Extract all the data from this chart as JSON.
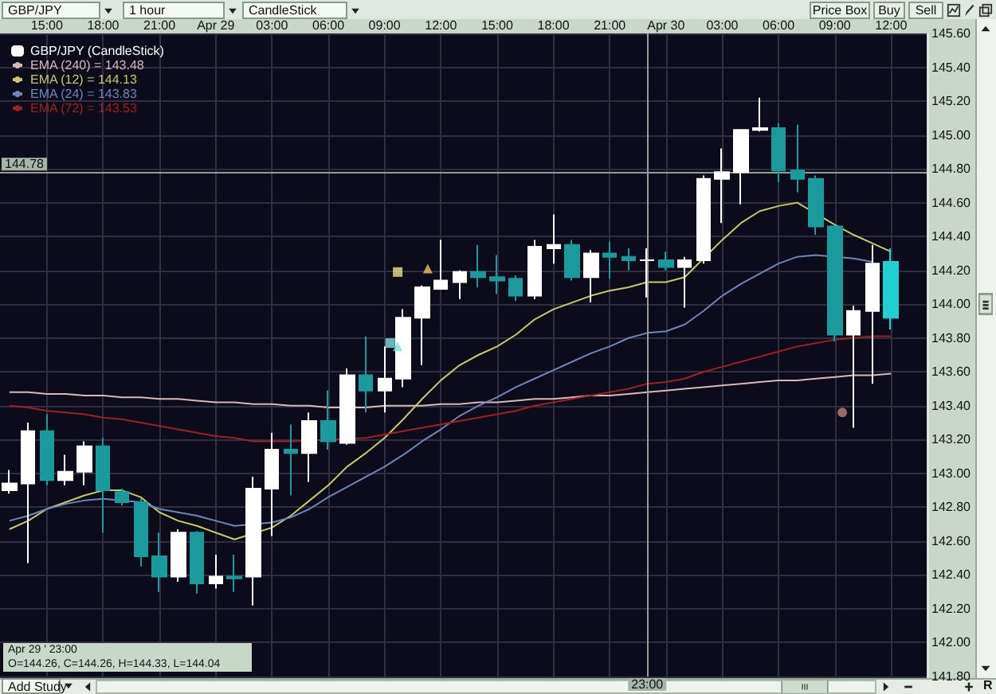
{
  "chart_data": {
    "type": "candlestick",
    "x": [
      "--04-28T13:00",
      "--04-28T14:00",
      "--04-28T15:00",
      "--04-28T16:00",
      "--04-28T17:00",
      "--04-28T18:00",
      "--04-28T19:00",
      "--04-28T20:00",
      "--04-28T21:00",
      "--04-28T22:00",
      "--04-28T23:00",
      "--04-29T00:00",
      "--04-29T01:00",
      "--04-29T02:00",
      "--04-29T03:00",
      "--04-29T04:00",
      "--04-29T05:00",
      "--04-29T06:00",
      "--04-29T07:00",
      "--04-29T08:00",
      "--04-29T09:00",
      "--04-29T10:00",
      "--04-29T11:00",
      "--04-29T12:00",
      "--04-29T13:00",
      "--04-29T14:00",
      "--04-29T15:00",
      "--04-29T16:00",
      "--04-29T17:00",
      "--04-29T18:00",
      "--04-29T19:00",
      "--04-29T20:00",
      "--04-29T21:00",
      "--04-29T22:00",
      "--04-29T23:00",
      "--04-30T00:00",
      "--04-30T01:00",
      "--04-30T02:00",
      "--04-30T03:00",
      "--04-30T04:00",
      "--04-30T05:00",
      "--04-30T06:00",
      "--04-30T07:00",
      "--04-30T08:00",
      "--04-30T09:00",
      "--04-30T10:00",
      "--04-30T11:00",
      "--04-30T12:00"
    ],
    "xlim": [
      "--04-28T12:30",
      "--04-30T13:54"
    ],
    "xticks": [
      {
        "value": "--04-28T15:00",
        "label": "15:00"
      },
      {
        "value": "--04-28T18:00",
        "label": "18:00"
      },
      {
        "value": "--04-28T21:00",
        "label": "21:00"
      },
      {
        "value": "--04-29T00:00",
        "label": "Apr 29"
      },
      {
        "value": "--04-29T03:00",
        "label": "03:00"
      },
      {
        "value": "--04-29T06:00",
        "label": "06:00"
      },
      {
        "value": "--04-29T09:00",
        "label": "09:00"
      },
      {
        "value": "--04-29T12:00",
        "label": "12:00"
      },
      {
        "value": "--04-29T15:00",
        "label": "15:00"
      },
      {
        "value": "--04-29T18:00",
        "label": "18:00"
      },
      {
        "value": "--04-29T21:00",
        "label": "21:00"
      },
      {
        "value": "--04-30T00:00",
        "label": "Apr 30"
      },
      {
        "value": "--04-30T03:00",
        "label": "03:00"
      },
      {
        "value": "--04-30T06:00",
        "label": "06:00"
      },
      {
        "value": "--04-30T09:00",
        "label": "09:00"
      },
      {
        "value": "--04-30T12:00",
        "label": "12:00"
      }
    ],
    "ylim": [
      141.8,
      145.6
    ],
    "yticks": [
      {
        "value": 141.8,
        "label": "141.80"
      },
      {
        "value": 142,
        "label": "142.00"
      },
      {
        "value": 142.2,
        "label": "142.20"
      },
      {
        "value": 142.4,
        "label": "142.40"
      },
      {
        "value": 142.6,
        "label": "142.60"
      },
      {
        "value": 142.8,
        "label": "142.80"
      },
      {
        "value": 143,
        "label": "143.00"
      },
      {
        "value": 143.2,
        "label": "143.20"
      },
      {
        "value": 143.4,
        "label": "143.40"
      },
      {
        "value": 143.6,
        "label": "143.60"
      },
      {
        "value": 143.8,
        "label": "143.80"
      },
      {
        "value": 144,
        "label": "144.00"
      },
      {
        "value": 144.2,
        "label": "144.20"
      },
      {
        "value": 144.4,
        "label": "144.40"
      },
      {
        "value": 144.6,
        "label": "144.60"
      },
      {
        "value": 144.8,
        "label": "144.80"
      },
      {
        "value": 145,
        "label": "145.00"
      },
      {
        "value": 145.2,
        "label": "145.20"
      },
      {
        "value": 145.4,
        "label": "145.40"
      },
      {
        "value": 145.6,
        "label": "145.60"
      }
    ],
    "grid": true,
    "legend": "top left",
    "ref_lines": [
      {
        "axis": "y",
        "value": 144.78,
        "label": "144.78",
        "color": "#9a9a9a"
      },
      {
        "axis": "x",
        "value": "--04-29T23:00",
        "label": "23:00",
        "color": "#9a9a9a"
      }
    ],
    "annotations": [
      "GBP/JPY",
      "1 hour",
      "CandleStick",
      "Price Box",
      "Buy",
      "Sell",
      "Add Study",
      "Apr 29 ' 23:00",
      "O=144.26, C=144.26, H=144.33, L=144.04",
      "R"
    ],
    "series": [
      {
        "name": "GBP/JPY (CandleStick)",
        "color": "#ffffff",
        "ohlc": [
          [
            142.9,
            143.02,
            142.88,
            142.94
          ],
          [
            142.94,
            143.3,
            142.47,
            143.25
          ],
          [
            143.25,
            143.35,
            142.93,
            142.96
          ],
          [
            142.96,
            143.11,
            142.93,
            143.01
          ],
          [
            143.01,
            143.19,
            142.93,
            143.16
          ],
          [
            143.16,
            143.21,
            142.65,
            142.9
          ],
          [
            142.89,
            142.91,
            142.81,
            142.83
          ],
          [
            142.83,
            142.85,
            142.45,
            142.51
          ],
          [
            142.51,
            142.65,
            142.3,
            142.39
          ],
          [
            142.39,
            142.67,
            142.36,
            142.65
          ],
          [
            142.65,
            142.66,
            142.29,
            142.35
          ],
          [
            142.35,
            142.52,
            142.32,
            142.39
          ],
          [
            142.39,
            142.52,
            142.3,
            142.38
          ],
          [
            142.39,
            142.98,
            142.22,
            142.91
          ],
          [
            142.91,
            143.24,
            142.63,
            143.14
          ],
          [
            143.14,
            143.29,
            142.87,
            143.12
          ],
          [
            143.12,
            143.36,
            142.95,
            143.31
          ],
          [
            143.31,
            143.49,
            143.14,
            143.19
          ],
          [
            143.18,
            143.62,
            143.17,
            143.58
          ],
          [
            143.58,
            143.81,
            143.36,
            143.49
          ],
          [
            143.49,
            143.75,
            143.36,
            143.56
          ],
          [
            143.56,
            143.97,
            143.51,
            143.92
          ],
          [
            143.92,
            144.11,
            143.64,
            144.1
          ],
          [
            144.09,
            144.38,
            144.09,
            144.14
          ],
          [
            144.13,
            144.2,
            144.03,
            144.19
          ],
          [
            144.19,
            144.35,
            144.1,
            144.16
          ],
          [
            144.16,
            144.29,
            144.06,
            144.14
          ],
          [
            144.15,
            144.17,
            144.02,
            144.05
          ],
          [
            144.05,
            144.38,
            144.03,
            144.34
          ],
          [
            144.33,
            144.53,
            144.24,
            144.35
          ],
          [
            144.35,
            144.38,
            144.14,
            144.16
          ],
          [
            144.16,
            144.32,
            144.01,
            144.3
          ],
          [
            144.3,
            144.37,
            144.15,
            144.28
          ],
          [
            144.28,
            144.33,
            144.2,
            144.26
          ],
          [
            144.26,
            144.33,
            144.04,
            144.26
          ],
          [
            144.26,
            144.31,
            144.2,
            144.22
          ],
          [
            144.22,
            144.28,
            143.98,
            144.26
          ],
          [
            144.26,
            144.76,
            144.24,
            144.74
          ],
          [
            144.74,
            144.92,
            144.48,
            144.78
          ],
          [
            144.78,
            145.03,
            144.59,
            145.03
          ],
          [
            145.03,
            145.22,
            145.02,
            145.04
          ],
          [
            145.04,
            145.07,
            144.72,
            144.79
          ],
          [
            144.79,
            145.06,
            144.66,
            144.74
          ],
          [
            144.74,
            144.76,
            144.41,
            144.46
          ],
          [
            144.46,
            144.47,
            143.78,
            143.82
          ],
          [
            143.82,
            143.99,
            143.27,
            143.96
          ],
          [
            143.96,
            144.35,
            143.53,
            144.24
          ],
          [
            144.25,
            144.33,
            143.85,
            143.92
          ]
        ],
        "colors": [
          "#ffffff",
          "#ffffff",
          "#1a9a9a",
          "#ffffff",
          "#ffffff",
          "#1a9a9a",
          "#1a9a9a",
          "#1a9a9a",
          "#1a9a9a",
          "#ffffff",
          "#1a9a9a",
          "#ffffff",
          "#1a9a9a",
          "#ffffff",
          "#ffffff",
          "#1a9a9a",
          "#ffffff",
          "#1a9a9a",
          "#ffffff",
          "#1a9a9a",
          "#ffffff",
          "#ffffff",
          "#ffffff",
          "#ffffff",
          "#ffffff",
          "#1a9a9a",
          "#1a9a9a",
          "#1a9a9a",
          "#ffffff",
          "#ffffff",
          "#1a9a9a",
          "#ffffff",
          "#1a9a9a",
          "#1a9a9a",
          "#ffffff",
          "#1a9a9a",
          "#ffffff",
          "#ffffff",
          "#ffffff",
          "#ffffff",
          "#ffffff",
          "#1a9a9a",
          "#1a9a9a",
          "#1a9a9a",
          "#1a9a9a",
          "#ffffff",
          "#ffffff",
          "#20d0d0"
        ]
      },
      {
        "type": "line",
        "name": "EMA (240) = 143.48",
        "color": "#d8b8b8",
        "values": [
          143.48,
          143.48,
          143.47,
          143.47,
          143.46,
          143.46,
          143.45,
          143.45,
          143.44,
          143.44,
          143.43,
          143.42,
          143.42,
          143.41,
          143.41,
          143.4,
          143.4,
          143.39,
          143.39,
          143.39,
          143.4,
          143.4,
          143.4,
          143.41,
          143.41,
          143.42,
          143.42,
          143.43,
          143.44,
          143.44,
          143.45,
          143.46,
          143.46,
          143.47,
          143.48,
          143.49,
          143.5,
          143.51,
          143.52,
          143.53,
          143.54,
          143.55,
          143.55,
          143.56,
          143.57,
          143.58,
          143.58,
          143.59
        ]
      },
      {
        "type": "line",
        "name": "EMA (12) = 144.13",
        "color": "#c8c870",
        "values": [
          142.67,
          142.72,
          142.79,
          142.83,
          142.87,
          142.9,
          142.9,
          142.86,
          142.77,
          142.72,
          142.69,
          142.65,
          142.61,
          null,
          142.68,
          142.75,
          142.84,
          142.93,
          143.04,
          143.12,
          143.21,
          143.32,
          143.44,
          143.55,
          143.64,
          143.7,
          143.75,
          143.82,
          143.91,
          143.97,
          144.01,
          144.05,
          144.08,
          144.1,
          144.13,
          144.13,
          144.16,
          144.27,
          144.38,
          144.48,
          144.55,
          144.58,
          144.6,
          null,
          144.47,
          144.41,
          144.36,
          144.31
        ]
      },
      {
        "type": "line",
        "name": "EMA (24) = 143.83",
        "color": "#6f86b8",
        "values": [
          142.72,
          142.75,
          142.79,
          142.82,
          142.84,
          142.85,
          null,
          142.83,
          142.79,
          142.77,
          142.75,
          142.72,
          142.69,
          null,
          142.71,
          142.74,
          142.79,
          142.86,
          142.92,
          142.98,
          143.04,
          143.11,
          143.19,
          143.26,
          143.34,
          143.4,
          143.45,
          143.51,
          143.56,
          143.61,
          143.66,
          143.71,
          143.75,
          143.8,
          143.83,
          143.84,
          143.88,
          143.96,
          144.05,
          144.12,
          144.18,
          144.24,
          144.28,
          144.29,
          null,
          144.27,
          144.25,
          null
        ]
      },
      {
        "type": "line",
        "name": "EMA (72) = 143.53",
        "color": "#a02020",
        "values": [
          143.4,
          143.39,
          143.37,
          143.36,
          143.35,
          143.33,
          143.32,
          143.3,
          143.28,
          143.26,
          143.24,
          143.22,
          143.21,
          143.19,
          143.19,
          143.19,
          null,
          null,
          null,
          143.21,
          143.23,
          143.25,
          143.27,
          143.29,
          143.31,
          143.33,
          143.35,
          143.37,
          143.4,
          143.42,
          143.44,
          143.46,
          143.48,
          143.5,
          143.53,
          143.54,
          143.56,
          143.6,
          143.63,
          143.66,
          143.69,
          143.72,
          143.75,
          143.77,
          143.79,
          143.8,
          143.81,
          143.81
        ]
      },
      {
        "type": "scatter",
        "color": "#f0e090",
        "marker": "square",
        "x": [
          "--04-29T09:42"
        ],
        "values": [
          144.19
        ]
      },
      {
        "type": "scatter",
        "color": "#f0c060",
        "marker": "triangle",
        "x": [
          "--04-29T11:18"
        ],
        "values": [
          144.21
        ]
      },
      {
        "type": "scatter",
        "color": "#80e0e0",
        "marker": "square",
        "x": [
          "--04-29T09:18"
        ],
        "values": [
          143.77
        ]
      },
      {
        "type": "scatter",
        "color": "#80e0e0",
        "marker": "triangle",
        "x": [
          "--04-29T09:42"
        ],
        "values": [
          143.75
        ]
      },
      {
        "type": "scatter",
        "color": "#c08080",
        "marker": "circle",
        "x": [
          "--04-30T09:24"
        ],
        "values": [
          143.36
        ]
      }
    ]
  }
}
